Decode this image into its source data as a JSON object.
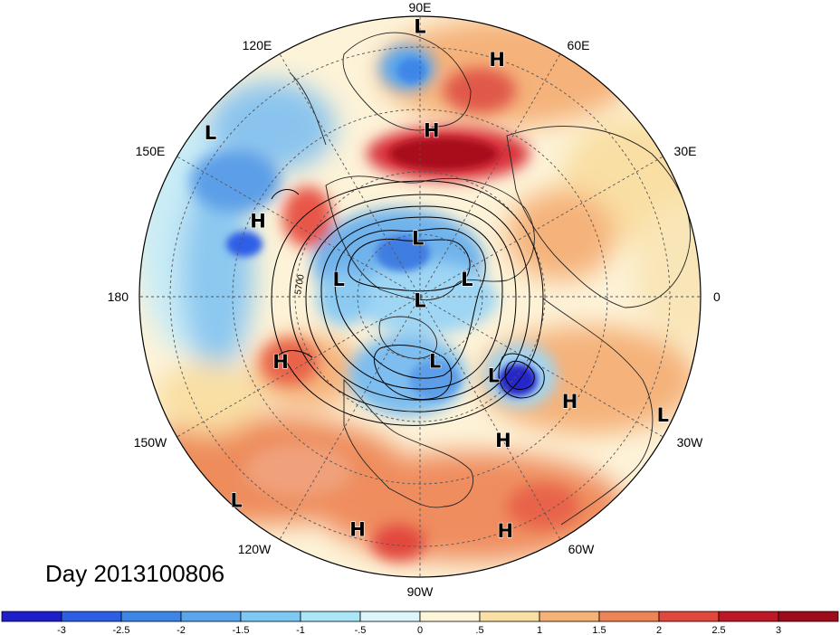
{
  "title": "Day 2013100806",
  "longitude_labels": [
    "90E",
    "60E",
    "30E",
    "0",
    "30W",
    "60W",
    "90W",
    "120W",
    "150W",
    "180",
    "150E",
    "120E"
  ],
  "contour_label": "5700",
  "pressure_centers": [
    {
      "type": "L",
      "lon": 90,
      "colat": 65
    },
    {
      "type": "H",
      "lon": 72,
      "colat": 60
    },
    {
      "type": "H",
      "lon": 86,
      "colat": 40
    },
    {
      "type": "L",
      "lon": 142,
      "colat": 64
    },
    {
      "type": "H",
      "lon": 155,
      "colat": 43
    },
    {
      "type": "L",
      "lon": 92,
      "colat": 14
    },
    {
      "type": "L",
      "lon": 168,
      "colat": 20
    },
    {
      "type": "L",
      "lon": 270,
      "colat": 1
    },
    {
      "type": "L",
      "lon": 20,
      "colat": 12
    },
    {
      "type": "H",
      "lon": 205,
      "colat": 37
    },
    {
      "type": "L",
      "lon": 283,
      "colat": 16
    },
    {
      "type": "L",
      "lon": 313,
      "colat": 26
    },
    {
      "type": "H",
      "lon": 325,
      "colat": 44
    },
    {
      "type": "L",
      "lon": 334,
      "colat": 65
    },
    {
      "type": "H",
      "lon": 300,
      "colat": 40
    },
    {
      "type": "H",
      "lon": 290,
      "colat": 60
    },
    {
      "type": "H",
      "lon": 255,
      "colat": 58
    },
    {
      "type": "L",
      "lon": 228,
      "colat": 66
    }
  ],
  "colorbar": {
    "labels": [
      "-3",
      "-2.5",
      "-2",
      "-1.5",
      "-1",
      "-.5",
      "0",
      ".5",
      "1",
      "1.5",
      "2",
      "2.5",
      "3"
    ],
    "colors": [
      "#1e1ecc",
      "#2d5fe6",
      "#3d86e8",
      "#5aa6ee",
      "#7ec8f4",
      "#a9e6f8",
      "#dcf5fb",
      "#fdf5d8",
      "#f9dfa4",
      "#f5b277",
      "#ee8456",
      "#e2473c",
      "#c01726",
      "#a00b1c"
    ]
  }
}
